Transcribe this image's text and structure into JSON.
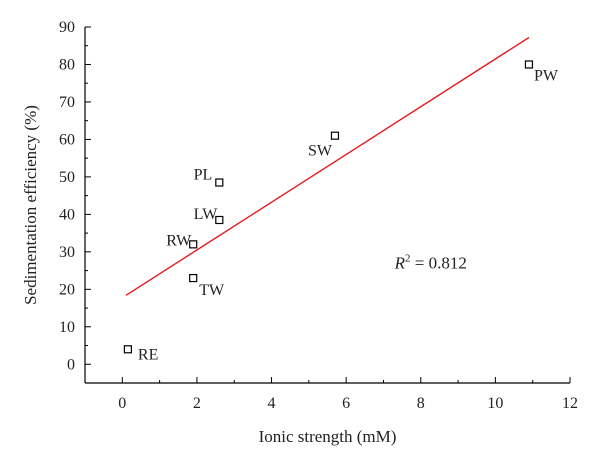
{
  "chart_data": {
    "type": "scatter",
    "title": "",
    "xlabel": "Ionic strength (mM)",
    "ylabel": "Sedimentation efficiency (%)",
    "xlim": [
      -1,
      12
    ],
    "ylim": [
      -5,
      90
    ],
    "xticks": [
      0,
      2,
      4,
      6,
      8,
      10,
      12
    ],
    "yticks": [
      0,
      10,
      20,
      30,
      40,
      50,
      60,
      70,
      80,
      90
    ],
    "grid": false,
    "points": [
      {
        "label": "RE",
        "x": 0.15,
        "y": 4
      },
      {
        "label": "TW",
        "x": 1.9,
        "y": 23
      },
      {
        "label": "RW",
        "x": 1.9,
        "y": 32
      },
      {
        "label": "LW",
        "x": 2.6,
        "y": 38.5
      },
      {
        "label": "PL",
        "x": 2.6,
        "y": 48.5
      },
      {
        "label": "SW",
        "x": 5.7,
        "y": 61
      },
      {
        "label": "PW",
        "x": 10.9,
        "y": 80
      }
    ],
    "fit_line": {
      "color": "#e41a1c",
      "x": [
        0.1,
        10.9
      ],
      "y": [
        18.4,
        87.2
      ]
    },
    "annotation": {
      "prefix": "R",
      "superscript": "2",
      "suffix": " = 0.812"
    },
    "colors": {
      "axis": "#000000",
      "marker_edge": "#000000",
      "marker_fill": "#ffffff",
      "fit": "#e41a1c"
    }
  }
}
